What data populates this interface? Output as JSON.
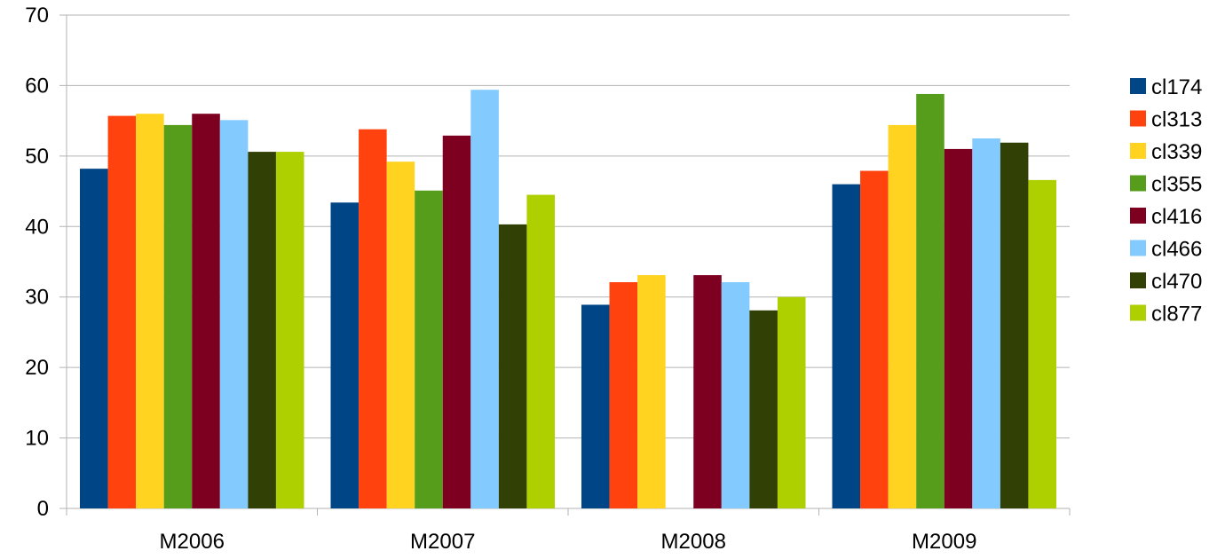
{
  "chart_data": {
    "type": "bar",
    "title": "",
    "xlabel": "",
    "ylabel": "",
    "categories": [
      "M2006",
      "M2007",
      "M2008",
      "M2009"
    ],
    "ylim": [
      0,
      70
    ],
    "yticks": [
      0,
      10,
      20,
      30,
      40,
      50,
      60,
      70
    ],
    "grid": true,
    "legend_position": "right",
    "series": [
      {
        "name": "cl174",
        "color": "#004586",
        "values": [
          48.2,
          43.4,
          28.9,
          46.0
        ]
      },
      {
        "name": "cl313",
        "color": "#ff420e",
        "values": [
          55.7,
          53.8,
          32.1,
          47.9
        ]
      },
      {
        "name": "cl339",
        "color": "#ffd320",
        "values": [
          56.0,
          49.2,
          33.1,
          54.4
        ]
      },
      {
        "name": "cl355",
        "color": "#579d1c",
        "values": [
          54.4,
          45.1,
          null,
          58.8
        ]
      },
      {
        "name": "cl416",
        "color": "#7e0021",
        "values": [
          56.0,
          52.9,
          33.1,
          51.0
        ]
      },
      {
        "name": "cl466",
        "color": "#83caff",
        "values": [
          55.1,
          59.4,
          32.1,
          52.5
        ]
      },
      {
        "name": "cl470",
        "color": "#314004",
        "values": [
          50.6,
          40.3,
          28.1,
          51.9
        ]
      },
      {
        "name": "cl877",
        "color": "#aecf00",
        "values": [
          50.6,
          44.5,
          30.0,
          46.6
        ]
      }
    ]
  }
}
